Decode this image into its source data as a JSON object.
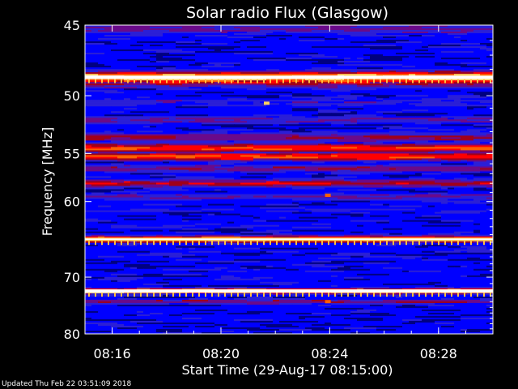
{
  "chart_data": {
    "type": "heatmap",
    "title": "Solar radio Flux (Glasgow)",
    "xlabel": "Start Time (29-Aug-17 08:15:00)",
    "ylabel": "Frequency [MHz]",
    "x_ticks": [
      "08:16",
      "08:20",
      "08:24",
      "08:28"
    ],
    "y_ticks": [
      "45",
      "50",
      "55",
      "60",
      "70",
      "80"
    ],
    "y_scale": "reciprocal",
    "xlim": [
      "08:15:00",
      "08:30:00"
    ],
    "ylim_mhz": [
      45,
      80
    ],
    "colormap": [
      "#000080",
      "#0000ff",
      "#2b1fd6",
      "#6a0a8a",
      "#a0001a",
      "#ff0000",
      "#ff6000",
      "#ffd060",
      "#ffffff"
    ],
    "bands": [
      {
        "freq_mhz": 45.2,
        "intensity": 0.35
      },
      {
        "freq_mhz": 46.0,
        "intensity": 0.05
      },
      {
        "freq_mhz": 47.0,
        "intensity": 0.1
      },
      {
        "freq_mhz": 48.3,
        "intensity": 0.15
      },
      {
        "freq_mhz": 48.6,
        "intensity": 0.95
      },
      {
        "freq_mhz": 49.0,
        "intensity": 0.5
      },
      {
        "freq_mhz": 50.5,
        "intensity": 0.25
      },
      {
        "freq_mhz": 52.0,
        "intensity": 0.3
      },
      {
        "freq_mhz": 53.5,
        "intensity": 0.45
      },
      {
        "freq_mhz": 54.5,
        "intensity": 0.7
      },
      {
        "freq_mhz": 55.3,
        "intensity": 0.7
      },
      {
        "freq_mhz": 56.5,
        "intensity": 0.4
      },
      {
        "freq_mhz": 58.0,
        "intensity": 0.55
      },
      {
        "freq_mhz": 59.5,
        "intensity": 0.35
      },
      {
        "freq_mhz": 61.0,
        "intensity": 0.2
      },
      {
        "freq_mhz": 63.0,
        "intensity": 0.15
      },
      {
        "freq_mhz": 64.6,
        "intensity": 0.88
      },
      {
        "freq_mhz": 66.0,
        "intensity": 0.15
      },
      {
        "freq_mhz": 68.0,
        "intensity": 0.1
      },
      {
        "freq_mhz": 72.2,
        "intensity": 0.97
      },
      {
        "freq_mhz": 74.0,
        "intensity": 0.45
      },
      {
        "freq_mhz": 76.0,
        "intensity": 0.12
      },
      {
        "freq_mhz": 79.0,
        "intensity": 0.08
      }
    ],
    "hot_spots": [
      {
        "time": "08:21:40",
        "freq_mhz": 50.6,
        "intensity": 0.9
      },
      {
        "time": "08:23:55",
        "freq_mhz": 59.3,
        "intensity": 0.8
      },
      {
        "time": "08:23:55",
        "freq_mhz": 74.0,
        "intensity": 0.7
      }
    ]
  },
  "footer": {
    "updated_text": "Updated Thu Feb 22 03:51:09 2018"
  }
}
